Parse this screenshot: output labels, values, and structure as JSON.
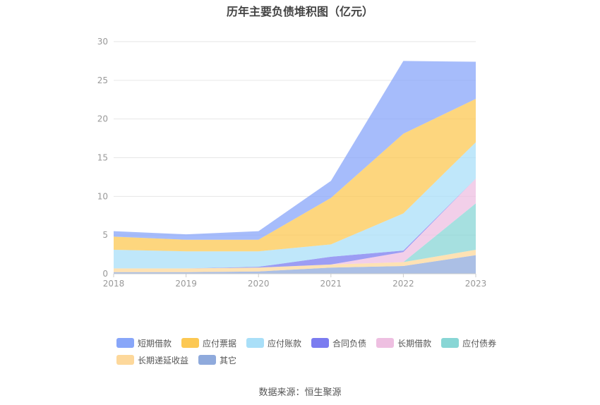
{
  "chart_data": {
    "type": "area",
    "stacked": true,
    "title": "历年主要负债堆积图（亿元）",
    "x": [
      "2018",
      "2019",
      "2020",
      "2021",
      "2022",
      "2023"
    ],
    "ylim": [
      0,
      30
    ],
    "yticks": [
      "0",
      "5",
      "10",
      "15",
      "20",
      "25",
      "30"
    ],
    "grid": true,
    "legend_position": "bottom",
    "series": [
      {
        "name": "其它",
        "color": "#8faadc",
        "values": [
          0.2,
          0.2,
          0.3,
          0.8,
          1.0,
          2.4
        ]
      },
      {
        "name": "长期递延收益",
        "color": "#fdd89b",
        "values": [
          0.5,
          0.5,
          0.5,
          0.4,
          0.5,
          0.7
        ]
      },
      {
        "name": "应付债券",
        "color": "#88d6d5",
        "values": [
          0,
          0,
          0,
          0,
          0,
          6.0
        ]
      },
      {
        "name": "长期借款",
        "color": "#eebfe1",
        "values": [
          0,
          0,
          0,
          0,
          1.3,
          3.2
        ]
      },
      {
        "name": "合同负债",
        "color": "#7b7cf0",
        "values": [
          0,
          0,
          0.1,
          1.0,
          0.2,
          0
        ]
      },
      {
        "name": "应付账款",
        "color": "#a9dff8",
        "values": [
          2.4,
          2.2,
          2.0,
          1.6,
          4.8,
          4.7
        ]
      },
      {
        "name": "应付票据",
        "color": "#fcc853",
        "values": [
          1.7,
          1.5,
          1.5,
          6.0,
          10.3,
          5.6
        ]
      },
      {
        "name": "短期借款",
        "color": "#88a6f9",
        "values": [
          0.7,
          0.7,
          1.1,
          2.2,
          9.4,
          4.8
        ]
      }
    ]
  },
  "legend": {
    "row1": [
      {
        "label": "短期借款",
        "color": "#88a6f9"
      },
      {
        "label": "应付票据",
        "color": "#fcc853"
      },
      {
        "label": "应付账款",
        "color": "#a9dff8"
      },
      {
        "label": "合同负债",
        "color": "#7b7cf0"
      },
      {
        "label": "长期借款",
        "color": "#eebfe1"
      },
      {
        "label": "应付债券",
        "color": "#88d6d5"
      }
    ],
    "row2": [
      {
        "label": "长期递延收益",
        "color": "#fdd89b"
      },
      {
        "label": "其它",
        "color": "#8faadc"
      }
    ]
  },
  "source": "数据来源：恒生聚源"
}
